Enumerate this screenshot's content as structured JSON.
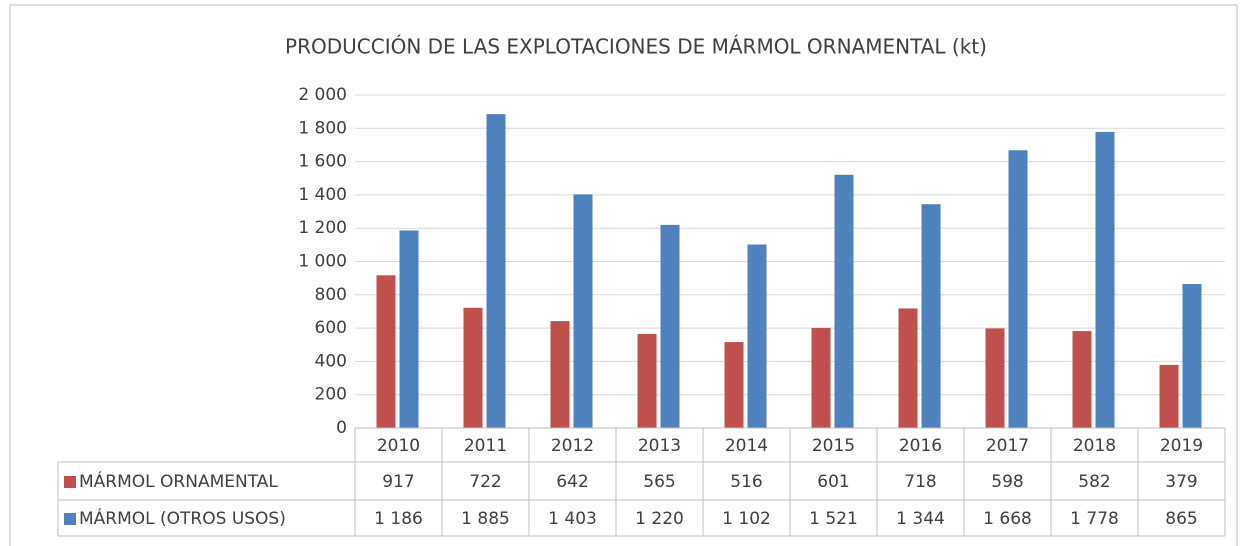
{
  "chart_data": {
    "type": "bar",
    "title": "PRODUCCIÓN DE LAS EXPLOTACIONES DE MÁRMOL ORNAMENTAL (kt)",
    "categories": [
      "2010",
      "2011",
      "2012",
      "2013",
      "2014",
      "2015",
      "2016",
      "2017",
      "2018",
      "2019"
    ],
    "series": [
      {
        "name": "MÁRMOL ORNAMENTAL",
        "color": "#c0504d",
        "values": [
          917,
          722,
          642,
          565,
          516,
          601,
          718,
          598,
          582,
          379
        ]
      },
      {
        "name": "MÁRMOL (OTROS USOS)",
        "color": "#4f81bd",
        "values": [
          1186,
          1885,
          1403,
          1220,
          1102,
          1521,
          1344,
          1668,
          1778,
          865
        ],
        "value_labels": [
          "1 186",
          "1 885",
          "1 403",
          "1 220",
          "1 102",
          "1 521",
          "1 344",
          "1 668",
          "1 778",
          "865"
        ]
      }
    ],
    "ylim": [
      0,
      2000
    ],
    "yticks": [
      0,
      200,
      400,
      600,
      800,
      {
        "value": 1000,
        "label": "1 000"
      },
      {
        "value": 1200,
        "label": "1 200"
      },
      {
        "value": 1400,
        "label": "1 400"
      },
      {
        "value": 1600,
        "label": "1 600"
      },
      {
        "value": 1800,
        "label": "1 800"
      },
      {
        "value": 2000,
        "label": "2 000"
      }
    ],
    "grid": true,
    "data_table": true
  }
}
